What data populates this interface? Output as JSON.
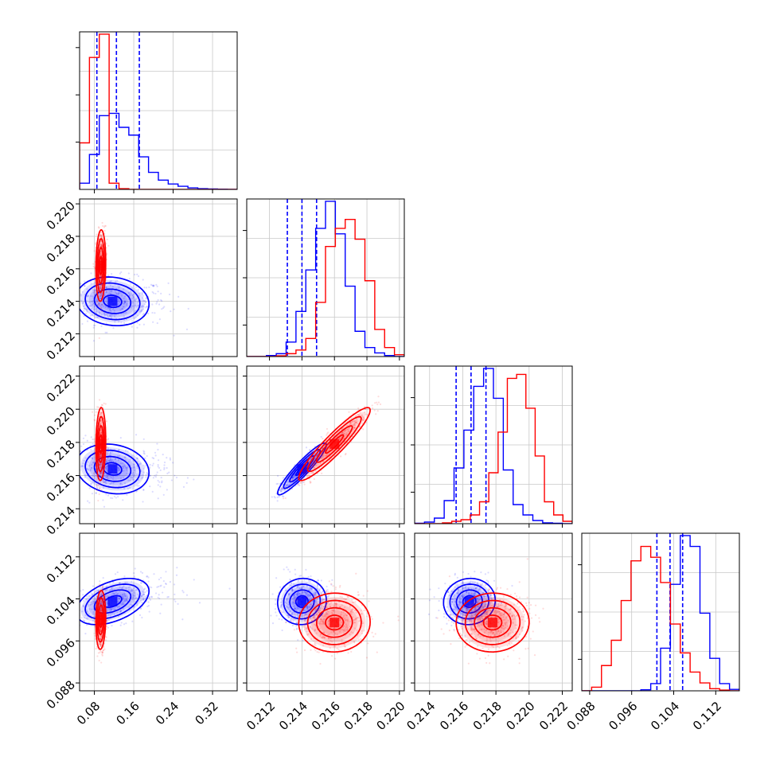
{
  "chart_data": {
    "type": "corner",
    "grid": true,
    "params": [
      {
        "range": [
          0.05,
          0.37
        ],
        "ticks": [
          0.08,
          0.16,
          0.24,
          0.32
        ],
        "tick_labels": [
          "0.08",
          "0.16",
          "0.24",
          "0.32"
        ]
      },
      {
        "range": [
          0.2106,
          0.2203
        ],
        "ticks": [
          0.212,
          0.214,
          0.216,
          0.218,
          0.22
        ],
        "tick_labels": [
          "0.212",
          "0.214",
          "0.216",
          "0.218",
          "0.220"
        ]
      },
      {
        "range": [
          0.2131,
          0.2226
        ],
        "ticks": [
          0.214,
          0.216,
          0.218,
          0.22,
          0.222
        ],
        "tick_labels": [
          "0.214",
          "0.216",
          "0.218",
          "0.220",
          "0.222"
        ]
      },
      {
        "range": [
          0.0865,
          0.1165
        ],
        "ticks": [
          0.088,
          0.096,
          0.104,
          0.112
        ],
        "tick_labels": [
          "0.088",
          "0.096",
          "0.104",
          "0.112"
        ]
      }
    ],
    "series": [
      {
        "color": "#0000ff",
        "hist": [
          [
            8,
            45,
            95,
            98,
            80,
            70,
            42,
            22,
            12,
            7,
            4,
            2,
            1,
            0.5,
            0.3,
            0.1
          ],
          [
            0,
            0,
            3,
            8,
            40,
            125,
            240,
            355,
            430,
            340,
            195,
            70,
            25,
            10,
            3,
            0
          ],
          [
            1,
            4,
            14,
            58,
            140,
            235,
            345,
            390,
            315,
            135,
            48,
            22,
            8,
            2,
            1,
            0
          ],
          [
            0,
            0,
            0,
            0,
            0,
            0,
            3,
            20,
            118,
            295,
            430,
            400,
            215,
            90,
            20,
            4
          ]
        ],
        "quantiles": [
          [
            0.0851,
            0.1248,
            0.1713
          ],
          [
            0.2131,
            0.214,
            0.2149
          ],
          [
            0.2156,
            0.2165,
            0.2174
          ],
          [
            0.1008,
            0.1033,
            0.1057
          ]
        ],
        "pairs": {
          "1-0": {
            "mean": [
              0.117,
              0.214
            ],
            "sd": [
              0.037,
              0.00075
            ],
            "r": -0.12
          },
          "2-0": {
            "mean": [
              0.117,
              0.2164
            ],
            "sd": [
              0.037,
              0.00075
            ],
            "r": -0.15
          },
          "2-1": {
            "mean": [
              0.214,
              0.2164
            ],
            "sd": [
              0.00075,
              0.00078
            ],
            "r": 0.93
          },
          "3-0": {
            "mean": [
              0.117,
              0.1035
            ],
            "sd": [
              0.037,
              0.0022
            ],
            "r": 0.45
          },
          "3-1": {
            "mean": [
              0.214,
              0.1035
            ],
            "sd": [
              0.00075,
              0.0022
            ],
            "r": 0.05
          },
          "3-2": {
            "mean": [
              0.2164,
              0.1035
            ],
            "sd": [
              0.00078,
              0.0022
            ],
            "r": 0.05
          }
        }
      },
      {
        "color": "#ff0000",
        "hist": [
          [
            60,
            170,
            200,
            8,
            1,
            0,
            0,
            0,
            0,
            0,
            0,
            0,
            0,
            0,
            0,
            0
          ],
          [
            0,
            0,
            0,
            2,
            8,
            18,
            50,
            150,
            305,
            355,
            380,
            325,
            210,
            75,
            25,
            5
          ],
          [
            0,
            0,
            0,
            2,
            6,
            10,
            22,
            55,
            128,
            230,
            365,
            375,
            290,
            170,
            55,
            22,
            6
          ],
          [
            0,
            10,
            70,
            140,
            250,
            360,
            400,
            370,
            300,
            185,
            105,
            52,
            22,
            6,
            2,
            0
          ]
        ],
        "quantiles": [],
        "pairs": {
          "1-0": {
            "mean": [
              0.093,
              0.2162
            ],
            "sd": [
              0.005,
              0.0011
            ],
            "r": 0.1
          },
          "2-0": {
            "mean": [
              0.093,
              0.2179
            ],
            "sd": [
              0.005,
              0.0011
            ],
            "r": 0.1
          },
          "2-1": {
            "mean": [
              0.216,
              0.2179
            ],
            "sd": [
              0.0011,
              0.0011
            ],
            "r": 0.93
          },
          "3-0": {
            "mean": [
              0.093,
              0.1
            ],
            "sd": [
              0.005,
              0.0028
            ],
            "r": 0.1
          },
          "3-1": {
            "mean": [
              0.216,
              0.0995
            ],
            "sd": [
              0.0011,
              0.0028
            ],
            "r": 0.02
          },
          "3-2": {
            "mean": [
              0.2178,
              0.0995
            ],
            "sd": [
              0.0011,
              0.0028
            ],
            "r": 0.02
          }
        }
      }
    ]
  }
}
